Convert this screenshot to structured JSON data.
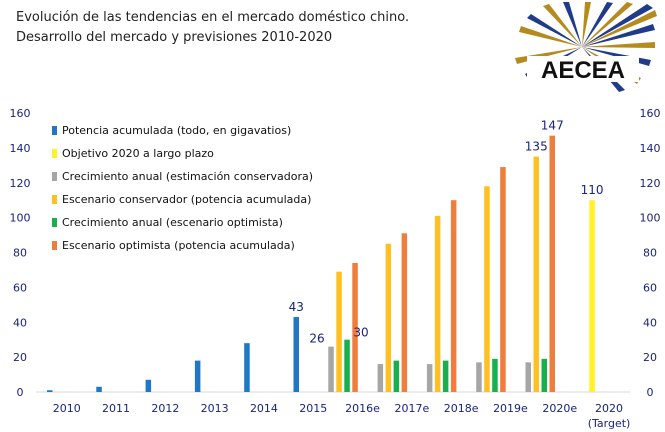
{
  "title": {
    "line1": "Evolución de las tendencias en el mercado doméstico chino.",
    "line2": "Desarrollo del mercado y previsiones 2010-2020"
  },
  "logo": {
    "text": "AECEA"
  },
  "colors": {
    "blue": "#1f77c8",
    "yellow": "#fff227",
    "gray": "#a6a6a6",
    "orange_light": "#ffc022",
    "green": "#18b04c",
    "orange": "#ef7d3c",
    "axis_text": "#1a237e"
  },
  "chart_data": {
    "type": "bar",
    "categories": [
      "2010",
      "2011",
      "2012",
      "2013",
      "2014",
      "2015",
      "2016e",
      "2017e",
      "2018e",
      "2019e",
      "2020e",
      "2020"
    ],
    "target_note": "(Target)",
    "ylim": [
      0,
      160
    ],
    "yticks": [
      0,
      20,
      40,
      60,
      80,
      100,
      120,
      140,
      160
    ],
    "legend_position": "top-left",
    "grid": false,
    "series": [
      {
        "name": "Potencia acumulada (todo, en gigavatios)",
        "color": "#1f77c8",
        "values": [
          1,
          3,
          7,
          18,
          28,
          43,
          null,
          null,
          null,
          null,
          null,
          null
        ]
      },
      {
        "name": "Objetivo 2020 a largo plazo",
        "color": "#fff227",
        "values": [
          null,
          null,
          null,
          null,
          null,
          null,
          null,
          null,
          null,
          null,
          null,
          110
        ]
      },
      {
        "name": "Crecimiento anual (estimación conservadora)",
        "color": "#a6a6a6",
        "values": [
          null,
          null,
          null,
          null,
          null,
          null,
          26,
          16,
          16,
          17,
          17,
          null
        ]
      },
      {
        "name": "Escenario conservador (potencia acumulada)",
        "color": "#ffc022",
        "values": [
          null,
          null,
          null,
          null,
          null,
          null,
          69,
          85,
          101,
          118,
          135,
          null
        ]
      },
      {
        "name": "Crecimiento anual (escenario optimista)",
        "color": "#18b04c",
        "values": [
          null,
          null,
          null,
          null,
          null,
          null,
          30,
          18,
          18,
          19,
          19,
          null
        ]
      },
      {
        "name": "Escenario optimista (potencia acumulada)",
        "color": "#ef7d3c",
        "values": [
          null,
          null,
          null,
          null,
          null,
          null,
          74,
          91,
          110,
          129,
          147,
          null
        ]
      }
    ],
    "data_labels": [
      {
        "category": "2015",
        "series": 0,
        "text": "43"
      },
      {
        "category": "2016e",
        "series": 2,
        "text": "26"
      },
      {
        "category": "2016e",
        "series": 4,
        "text": "30"
      },
      {
        "category": "2020e",
        "series": 3,
        "text": "135"
      },
      {
        "category": "2020e",
        "series": 5,
        "text": "147"
      },
      {
        "category": "2020",
        "series": 1,
        "text": "110"
      }
    ]
  }
}
